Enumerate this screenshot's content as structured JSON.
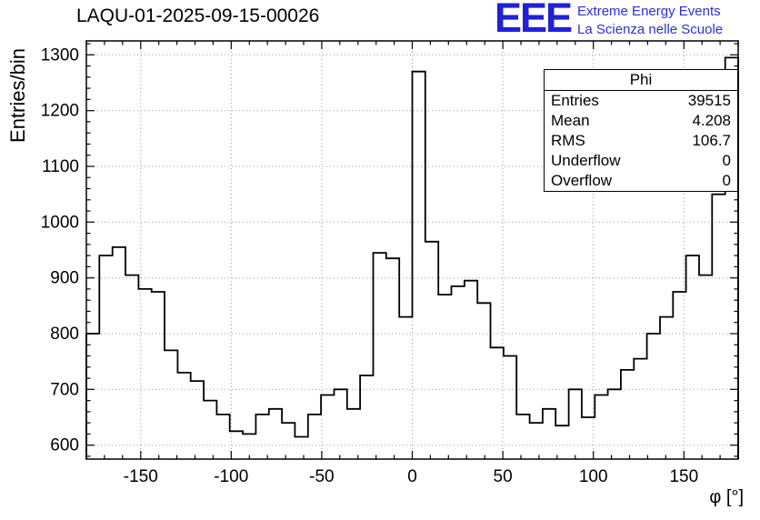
{
  "header": {
    "title": "LAQU-01-2025-09-15-00026",
    "logo": {
      "acronym": "EEE",
      "line1": "Extreme Energy Events",
      "line2": "La Scienza nelle Scuole",
      "color": "#2222d2"
    }
  },
  "stats": {
    "title": "Phi",
    "rows": [
      {
        "label": "Entries",
        "value": "39515"
      },
      {
        "label": "Mean",
        "value": "4.208"
      },
      {
        "label": "RMS",
        "value": "106.7"
      },
      {
        "label": "Underflow",
        "value": "0"
      },
      {
        "label": "Overflow",
        "value": "0"
      }
    ]
  },
  "axes": {
    "y_title": "Entries/bin",
    "x_title": "φ [°]"
  },
  "chart_data": {
    "type": "bar",
    "subtype": "step-histogram",
    "title": "LAQU-01-2025-09-15-00026",
    "xlabel": "φ [°]",
    "ylabel": "Entries/bin",
    "xlim": [
      -180,
      180
    ],
    "ylim": [
      575,
      1325
    ],
    "x_ticks": [
      -150,
      -100,
      -50,
      0,
      50,
      100,
      150
    ],
    "y_ticks": [
      600,
      700,
      800,
      900,
      1000,
      1100,
      1200,
      1300
    ],
    "x_minor_step": 10,
    "y_minor_step": 20,
    "grid": true,
    "legend_position": "none",
    "bin_width_deg": 7.2,
    "values": [
      800,
      940,
      955,
      905,
      880,
      875,
      770,
      730,
      715,
      680,
      655,
      625,
      620,
      655,
      665,
      640,
      615,
      655,
      690,
      700,
      665,
      725,
      945,
      935,
      830,
      1270,
      965,
      870,
      885,
      895,
      855,
      775,
      760,
      655,
      640,
      665,
      635,
      700,
      650,
      690,
      700,
      735,
      755,
      800,
      830,
      875,
      940,
      905,
      1050,
      1295
    ],
    "line_color": "#000000",
    "grid_color": "#999999"
  }
}
